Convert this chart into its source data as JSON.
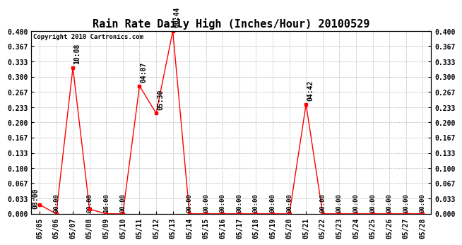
{
  "title": "Rain Rate Daily High (Inches/Hour) 20100529",
  "copyright": "Copyright 2010 Cartronics.com",
  "background_color": "#ffffff",
  "line_color": "#ff0000",
  "marker_color": "#ff0000",
  "grid_color": "#bbbbbb",
  "dates": [
    "05/05",
    "05/06",
    "05/07",
    "05/08",
    "05/09",
    "05/10",
    "05/11",
    "05/12",
    "05/13",
    "05/14",
    "05/15",
    "05/16",
    "05/17",
    "05/18",
    "05/19",
    "05/20",
    "05/21",
    "05/22",
    "05/23",
    "05/24",
    "05/25",
    "05/26",
    "05/27",
    "05/28"
  ],
  "values": [
    0.02,
    0.0,
    0.32,
    0.01,
    0.0,
    0.0,
    0.28,
    0.22,
    0.4,
    0.0,
    0.0,
    0.0,
    0.0,
    0.0,
    0.0,
    0.0,
    0.24,
    0.0,
    0.0,
    0.0,
    0.0,
    0.0,
    0.0,
    0.0
  ],
  "time_labels": [
    "08:00",
    "00:00",
    "10:08",
    "00:00",
    "16:00",
    "00:00",
    "04:07",
    "05:30",
    "00:44",
    "00:00",
    "00:00",
    "00:00",
    "00:00",
    "00:00",
    "00:00",
    "00:00",
    "04:42",
    "00:00",
    "00:00",
    "00:00",
    "00:00",
    "00:00",
    "00:00",
    "00:00"
  ],
  "peak_indices": [
    2,
    6,
    7,
    8,
    16
  ],
  "small_annotate_indices": [
    0
  ],
  "ylim": [
    0.0,
    0.4
  ],
  "yticks": [
    0.0,
    0.033,
    0.067,
    0.1,
    0.133,
    0.167,
    0.2,
    0.233,
    0.267,
    0.3,
    0.333,
    0.367,
    0.4
  ],
  "title_fontsize": 11,
  "annot_fontsize": 7,
  "tick_fontsize": 7,
  "copyright_fontsize": 6.5
}
